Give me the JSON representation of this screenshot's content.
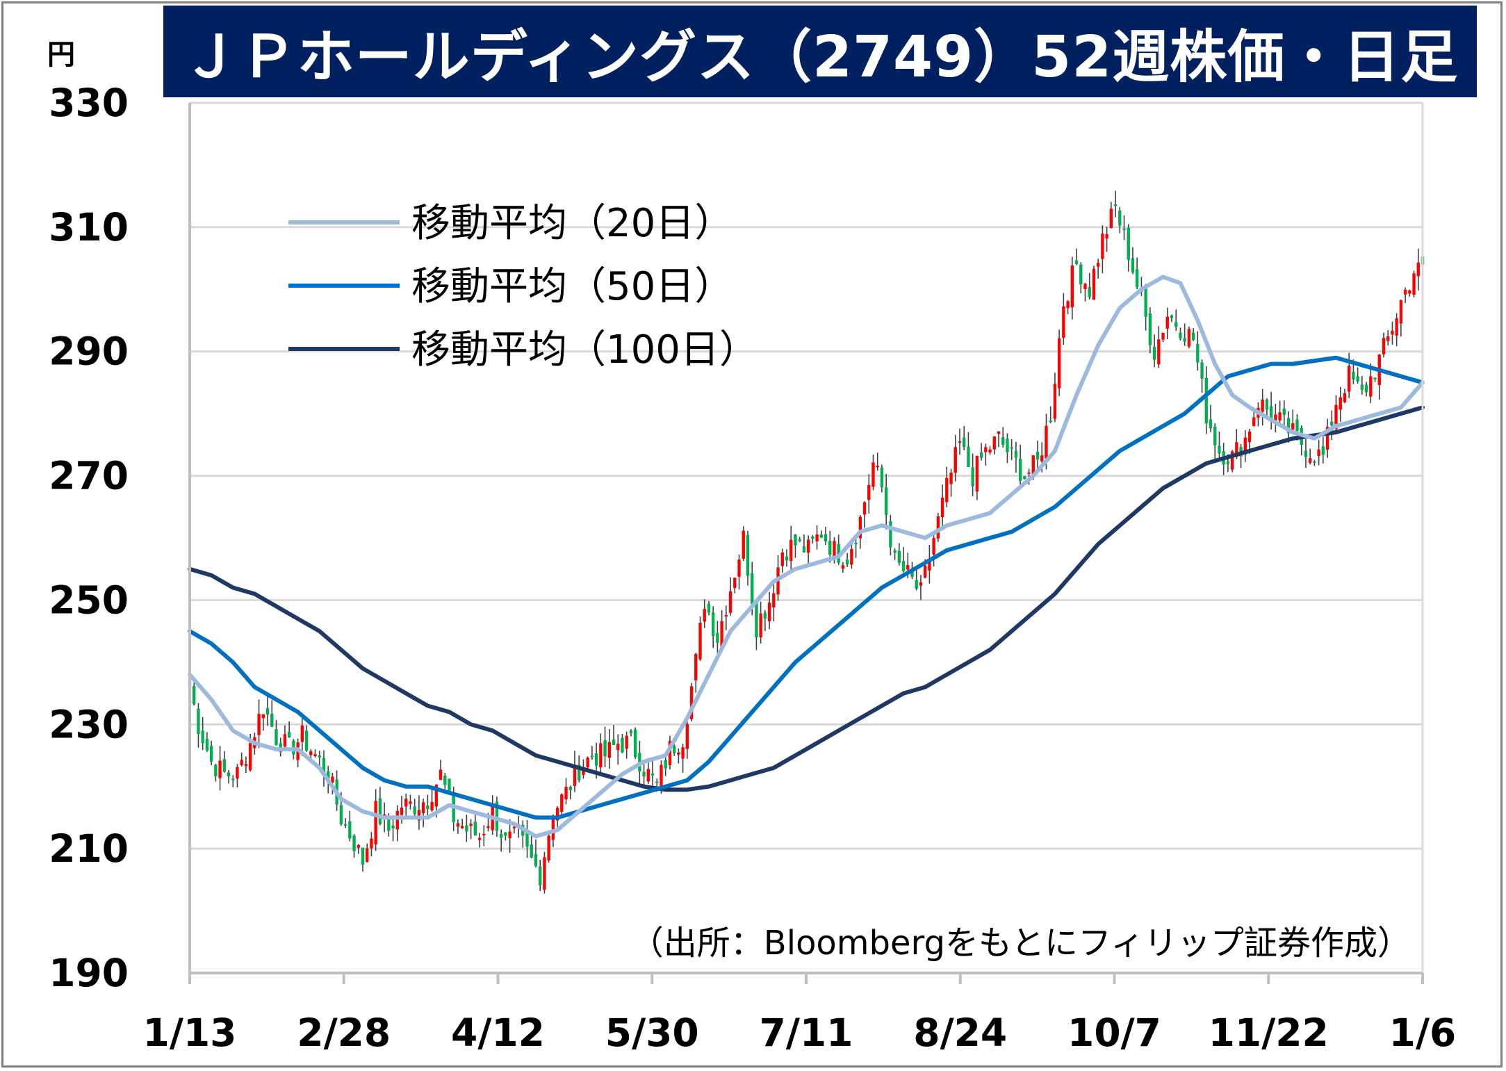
{
  "chart_data": {
    "type": "candlestick",
    "title": "ＪＰホールディングス（2749）52週株価・日足",
    "y_unit": "円",
    "ylim": [
      190,
      330
    ],
    "y_ticks": [
      "190",
      "210",
      "230",
      "250",
      "270",
      "290",
      "310",
      "330"
    ],
    "x_ticks": [
      "1/13",
      "2/28",
      "4/12",
      "5/30",
      "7/11",
      "8/24",
      "10/7",
      "11/22",
      "1/6"
    ],
    "grid": true,
    "legend_position": "top-left",
    "source": "（出所：Bloombergをもとにフィリップ証券作成）",
    "colors": {
      "up": "#ff0000",
      "down": "#00b050",
      "ma20": "#9db9de",
      "ma50": "#0070c0",
      "ma100": "#1f3864",
      "title_bg": "#002060"
    },
    "legend": [
      {
        "label": "移動平均（20日）",
        "color": "#9db9de"
      },
      {
        "label": "移動平均（50日）",
        "color": "#0070c0"
      },
      {
        "label": "移動平均（100日）",
        "color": "#1f3864"
      }
    ],
    "price_path": [
      [
        0,
        236
      ],
      [
        2,
        230
      ],
      [
        5,
        224
      ],
      [
        8,
        222
      ],
      [
        11,
        222
      ],
      [
        14,
        227
      ],
      [
        17,
        233
      ],
      [
        20,
        228
      ],
      [
        23,
        226
      ],
      [
        26,
        228
      ],
      [
        29,
        225
      ],
      [
        32,
        222
      ],
      [
        35,
        215
      ],
      [
        38,
        211
      ],
      [
        40,
        208
      ],
      [
        43,
        216
      ],
      [
        46,
        213
      ],
      [
        49,
        217
      ],
      [
        52,
        217
      ],
      [
        55,
        218
      ],
      [
        58,
        222
      ],
      [
        61,
        215
      ],
      [
        64,
        213
      ],
      [
        67,
        212
      ],
      [
        70,
        216
      ],
      [
        73,
        211
      ],
      [
        76,
        212
      ],
      [
        79,
        208
      ],
      [
        81,
        206
      ],
      [
        84,
        216
      ],
      [
        87,
        219
      ],
      [
        90,
        223
      ],
      [
        93,
        225
      ],
      [
        96,
        225
      ],
      [
        99,
        227
      ],
      [
        102,
        227
      ],
      [
        105,
        223
      ],
      [
        108,
        220
      ],
      [
        111,
        226
      ],
      [
        114,
        228
      ],
      [
        117,
        240
      ],
      [
        119,
        250
      ],
      [
        122,
        244
      ],
      [
        125,
        252
      ],
      [
        128,
        260
      ],
      [
        131,
        246
      ],
      [
        134,
        250
      ],
      [
        137,
        258
      ],
      [
        140,
        259
      ],
      [
        143,
        258
      ],
      [
        146,
        261
      ],
      [
        149,
        258
      ],
      [
        152,
        257
      ],
      [
        155,
        263
      ],
      [
        158,
        272
      ],
      [
        160,
        268
      ],
      [
        163,
        256
      ],
      [
        166,
        254
      ],
      [
        169,
        251
      ],
      [
        172,
        260
      ],
      [
        175,
        268
      ],
      [
        178,
        275
      ],
      [
        181,
        270
      ],
      [
        184,
        274
      ],
      [
        187,
        276
      ],
      [
        190,
        273
      ],
      [
        193,
        270
      ],
      [
        196,
        272
      ],
      [
        199,
        280
      ],
      [
        202,
        298
      ],
      [
        205,
        304
      ],
      [
        208,
        300
      ],
      [
        211,
        308
      ],
      [
        214,
        313
      ],
      [
        217,
        306
      ],
      [
        220,
        298
      ],
      [
        223,
        290
      ],
      [
        226,
        296
      ],
      [
        229,
        294
      ],
      [
        232,
        292
      ],
      [
        235,
        280
      ],
      [
        238,
        274
      ],
      [
        241,
        273
      ],
      [
        244,
        276
      ],
      [
        247,
        282
      ],
      [
        250,
        280
      ],
      [
        253,
        278
      ],
      [
        256,
        276
      ],
      [
        259,
        274
      ],
      [
        262,
        273
      ],
      [
        265,
        282
      ],
      [
        268,
        286
      ],
      [
        271,
        283
      ],
      [
        274,
        287
      ],
      [
        277,
        292
      ],
      [
        280,
        298
      ],
      [
        283,
        303
      ]
    ],
    "ma20": [
      [
        0,
        238
      ],
      [
        5,
        234
      ],
      [
        10,
        229
      ],
      [
        15,
        227
      ],
      [
        20,
        226
      ],
      [
        25,
        226
      ],
      [
        30,
        223
      ],
      [
        35,
        218
      ],
      [
        40,
        216
      ],
      [
        45,
        215
      ],
      [
        50,
        215
      ],
      [
        55,
        215
      ],
      [
        60,
        217
      ],
      [
        65,
        216
      ],
      [
        70,
        215
      ],
      [
        75,
        214
      ],
      [
        80,
        212
      ],
      [
        85,
        213
      ],
      [
        90,
        216
      ],
      [
        95,
        219
      ],
      [
        100,
        222
      ],
      [
        105,
        224
      ],
      [
        110,
        225
      ],
      [
        115,
        231
      ],
      [
        120,
        238
      ],
      [
        125,
        245
      ],
      [
        130,
        249
      ],
      [
        135,
        253
      ],
      [
        140,
        255
      ],
      [
        145,
        256
      ],
      [
        150,
        257
      ],
      [
        155,
        261
      ],
      [
        160,
        262
      ],
      [
        165,
        261
      ],
      [
        170,
        260
      ],
      [
        175,
        262
      ],
      [
        180,
        263
      ],
      [
        185,
        264
      ],
      [
        190,
        267
      ],
      [
        195,
        270
      ],
      [
        200,
        274
      ],
      [
        205,
        283
      ],
      [
        210,
        291
      ],
      [
        215,
        297
      ],
      [
        220,
        300
      ],
      [
        225,
        302
      ],
      [
        229,
        301
      ],
      [
        233,
        295
      ],
      [
        237,
        288
      ],
      [
        241,
        283
      ],
      [
        245,
        281
      ],
      [
        250,
        279
      ],
      [
        255,
        277
      ],
      [
        260,
        276
      ],
      [
        265,
        278
      ],
      [
        270,
        279
      ],
      [
        275,
        280
      ],
      [
        280,
        281
      ],
      [
        285,
        285
      ]
    ],
    "ma50": [
      [
        0,
        245
      ],
      [
        5,
        243
      ],
      [
        10,
        240
      ],
      [
        15,
        236
      ],
      [
        20,
        234
      ],
      [
        25,
        232
      ],
      [
        30,
        229
      ],
      [
        35,
        226
      ],
      [
        40,
        223
      ],
      [
        45,
        221
      ],
      [
        50,
        220
      ],
      [
        55,
        220
      ],
      [
        60,
        219
      ],
      [
        65,
        218
      ],
      [
        70,
        217
      ],
      [
        75,
        216
      ],
      [
        80,
        215
      ],
      [
        85,
        215
      ],
      [
        90,
        216
      ],
      [
        95,
        217
      ],
      [
        100,
        218
      ],
      [
        105,
        219
      ],
      [
        110,
        220
      ],
      [
        115,
        221
      ],
      [
        120,
        224
      ],
      [
        125,
        228
      ],
      [
        130,
        232
      ],
      [
        135,
        236
      ],
      [
        140,
        240
      ],
      [
        145,
        243
      ],
      [
        150,
        246
      ],
      [
        155,
        249
      ],
      [
        160,
        252
      ],
      [
        165,
        254
      ],
      [
        170,
        256
      ],
      [
        175,
        258
      ],
      [
        180,
        259
      ],
      [
        185,
        260
      ],
      [
        190,
        261
      ],
      [
        195,
        263
      ],
      [
        200,
        265
      ],
      [
        205,
        268
      ],
      [
        210,
        271
      ],
      [
        215,
        274
      ],
      [
        220,
        276
      ],
      [
        225,
        278
      ],
      [
        230,
        280
      ],
      [
        235,
        283
      ],
      [
        240,
        286
      ],
      [
        245,
        287
      ],
      [
        250,
        288
      ],
      [
        255,
        288
      ],
      [
        260,
        288.5
      ],
      [
        265,
        289
      ],
      [
        270,
        288
      ],
      [
        275,
        287
      ],
      [
        280,
        286
      ],
      [
        285,
        285
      ]
    ],
    "ma100": [
      [
        0,
        255
      ],
      [
        5,
        254
      ],
      [
        10,
        252
      ],
      [
        15,
        251
      ],
      [
        20,
        249
      ],
      [
        25,
        247
      ],
      [
        30,
        245
      ],
      [
        35,
        242
      ],
      [
        40,
        239
      ],
      [
        45,
        237
      ],
      [
        50,
        235
      ],
      [
        55,
        233
      ],
      [
        60,
        232
      ],
      [
        65,
        230
      ],
      [
        70,
        229
      ],
      [
        75,
        227
      ],
      [
        80,
        225
      ],
      [
        85,
        224
      ],
      [
        90,
        223
      ],
      [
        95,
        222
      ],
      [
        100,
        221
      ],
      [
        105,
        220
      ],
      [
        110,
        219.5
      ],
      [
        115,
        219.5
      ],
      [
        120,
        220
      ],
      [
        125,
        221
      ],
      [
        130,
        222
      ],
      [
        135,
        223
      ],
      [
        140,
        225
      ],
      [
        145,
        227
      ],
      [
        150,
        229
      ],
      [
        155,
        231
      ],
      [
        160,
        233
      ],
      [
        165,
        235
      ],
      [
        170,
        236
      ],
      [
        175,
        238
      ],
      [
        180,
        240
      ],
      [
        185,
        242
      ],
      [
        190,
        245
      ],
      [
        195,
        248
      ],
      [
        200,
        251
      ],
      [
        205,
        255
      ],
      [
        210,
        259
      ],
      [
        215,
        262
      ],
      [
        220,
        265
      ],
      [
        225,
        268
      ],
      [
        230,
        270
      ],
      [
        235,
        272
      ],
      [
        240,
        273
      ],
      [
        245,
        274
      ],
      [
        250,
        275
      ],
      [
        255,
        276
      ],
      [
        260,
        276.5
      ],
      [
        265,
        277
      ],
      [
        270,
        278
      ],
      [
        275,
        279
      ],
      [
        280,
        280
      ],
      [
        285,
        281
      ]
    ]
  }
}
